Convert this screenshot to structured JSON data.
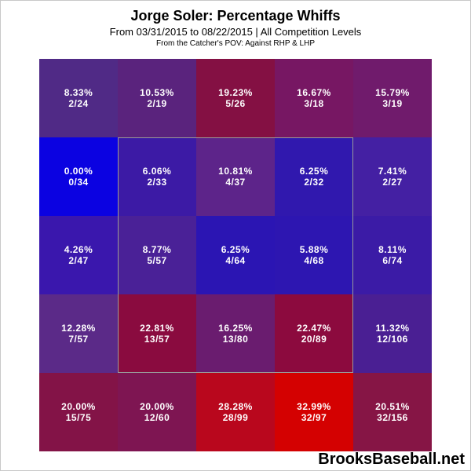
{
  "title": "Jorge Soler: Percentage Whiffs",
  "subtitle": "From 03/31/2015 to 08/22/2015 | All Competition Levels",
  "subtitle2": "From the Catcher's POV:  Against RHP & LHP",
  "watermark": "BrooksBaseball.net",
  "chart_data": {
    "type": "heatmap",
    "title": "Jorge Soler: Percentage Whiffs",
    "rows": 5,
    "cols": 5,
    "strike_zone": "center 3x3",
    "cells": [
      [
        {
          "pct": "8.33%",
          "frac": "2/24",
          "value": 8.33,
          "color": "#502a86"
        },
        {
          "pct": "10.53%",
          "frac": "2/19",
          "value": 10.53,
          "color": "#5a237d"
        },
        {
          "pct": "19.23%",
          "frac": "5/26",
          "value": 19.23,
          "color": "#841043"
        },
        {
          "pct": "16.67%",
          "frac": "3/18",
          "value": 16.67,
          "color": "#771763"
        },
        {
          "pct": "15.79%",
          "frac": "3/19",
          "value": 15.79,
          "color": "#701b6c"
        }
      ],
      [
        {
          "pct": "0.00%",
          "frac": "0/34",
          "value": 0.0,
          "color": "#0b02e1"
        },
        {
          "pct": "6.06%",
          "frac": "2/33",
          "value": 6.06,
          "color": "#3c1aa5"
        },
        {
          "pct": "10.81%",
          "frac": "4/37",
          "value": 10.81,
          "color": "#5d248a"
        },
        {
          "pct": "6.25%",
          "frac": "2/32",
          "value": 6.25,
          "color": "#3018ae"
        },
        {
          "pct": "7.41%",
          "frac": "2/27",
          "value": 7.41,
          "color": "#4420a3"
        }
      ],
      [
        {
          "pct": "4.26%",
          "frac": "2/47",
          "value": 4.26,
          "color": "#3a17ad"
        },
        {
          "pct": "8.77%",
          "frac": "5/57",
          "value": 8.77,
          "color": "#4a2197"
        },
        {
          "pct": "6.25%",
          "frac": "4/64",
          "value": 6.25,
          "color": "#2b15b3"
        },
        {
          "pct": "5.88%",
          "frac": "4/68",
          "value": 5.88,
          "color": "#2d16b1"
        },
        {
          "pct": "8.11%",
          "frac": "6/74",
          "value": 8.11,
          "color": "#3b1ba6"
        }
      ],
      [
        {
          "pct": "12.28%",
          "frac": "7/57",
          "value": 12.28,
          "color": "#5b2a88"
        },
        {
          "pct": "22.81%",
          "frac": "13/57",
          "value": 22.81,
          "color": "#8a0b3f"
        },
        {
          "pct": "16.25%",
          "frac": "13/80",
          "value": 16.25,
          "color": "#6a1c6f"
        },
        {
          "pct": "22.47%",
          "frac": "20/89",
          "value": 22.47,
          "color": "#8c0a3e"
        },
        {
          "pct": "11.32%",
          "frac": "12/106",
          "value": 11.32,
          "color": "#4a1f93"
        }
      ],
      [
        {
          "pct": "20.00%",
          "frac": "15/75",
          "value": 20.0,
          "color": "#831347"
        },
        {
          "pct": "20.00%",
          "frac": "12/60",
          "value": 20.0,
          "color": "#7e1552"
        },
        {
          "pct": "28.28%",
          "frac": "28/99",
          "value": 28.28,
          "color": "#b9071d"
        },
        {
          "pct": "32.99%",
          "frac": "32/97",
          "value": 32.99,
          "color": "#d40101"
        },
        {
          "pct": "20.51%",
          "frac": "32/156",
          "value": 20.51,
          "color": "#861545"
        }
      ]
    ]
  }
}
